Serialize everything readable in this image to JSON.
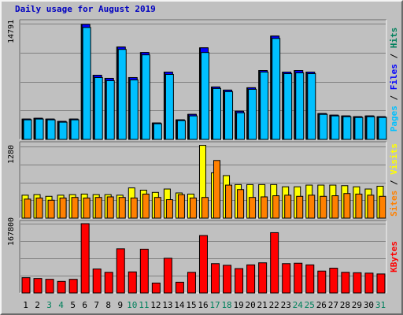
{
  "chart_data": {
    "type": "bar",
    "title": "Daily usage for August 2019",
    "categories": [
      "1",
      "2",
      "3",
      "4",
      "5",
      "6",
      "7",
      "8",
      "9",
      "10",
      "11",
      "12",
      "13",
      "14",
      "15",
      "16",
      "17",
      "18",
      "19",
      "20",
      "21",
      "22",
      "23",
      "24",
      "25",
      "26",
      "27",
      "28",
      "29",
      "30",
      "31"
    ],
    "weekend_days": [
      3,
      4,
      10,
      11,
      17,
      18,
      24,
      25,
      31
    ],
    "colors": {
      "hits": "#00805c",
      "files": "#0000ff",
      "pages": "#00c0ff",
      "visits": "#ffff00",
      "sites": "#ff8000",
      "kbytes": "#ff0000",
      "weekday_label": "#000000",
      "weekend_label": "#00805c"
    },
    "panels": [
      {
        "id": "requests",
        "max_label": "14791",
        "max_value": 14791,
        "right_label": [
          {
            "text": "Pages",
            "color": "#00c0ff"
          },
          {
            "text": " / ",
            "color": "#000000"
          },
          {
            "text": "Files",
            "color": "#0000ff"
          },
          {
            "text": " / ",
            "color": "#000000"
          },
          {
            "text": "Hits",
            "color": "#00805c"
          }
        ],
        "series": [
          {
            "name": "Hits",
            "color": "#00805c",
            "values": [
              2600,
              2700,
              2600,
              2300,
              2600,
              14700,
              8200,
              7800,
              11800,
              7900,
              11100,
              2100,
              8600,
              2500,
              3200,
              11700,
              6700,
              6300,
              3600,
              6600,
              8800,
              13200,
              8600,
              8800,
              8600,
              3300,
              3100,
              3000,
              2900,
              3000,
              2900
            ]
          },
          {
            "name": "Files",
            "color": "#0000ff",
            "values": [
              2600,
              2700,
              2600,
              2300,
              2600,
              14700,
              8200,
              7800,
              11800,
              7900,
              11100,
              2100,
              8600,
              2500,
              3200,
              11700,
              6700,
              6300,
              3600,
              6600,
              8800,
              13200,
              8600,
              8800,
              8600,
              3300,
              3100,
              3000,
              2900,
              3000,
              2900
            ]
          },
          {
            "name": "Pages",
            "color": "#00c0ff",
            "values": [
              2500,
              2600,
              2500,
              2200,
              2500,
              14300,
              7900,
              7500,
              11500,
              7600,
              10800,
              2000,
              8300,
              2400,
              3000,
              11100,
              6500,
              6100,
              3400,
              6400,
              8600,
              12900,
              8400,
              8500,
              8400,
              3200,
              3000,
              2900,
              2800,
              2900,
              2800
            ]
          }
        ]
      },
      {
        "id": "visitors",
        "max_label": "1280",
        "max_value": 1280,
        "right_label": [
          {
            "text": "Sites",
            "color": "#ff8000"
          },
          {
            "text": " / ",
            "color": "#000000"
          },
          {
            "text": "Visits",
            "color": "#ffff00"
          }
        ],
        "series": [
          {
            "name": "Visits",
            "color": "#ffff00",
            "values": [
              410,
              420,
              390,
              410,
              420,
              430,
              420,
              420,
              410,
              540,
              500,
              460,
              520,
              450,
              430,
              1300,
              810,
              760,
              600,
              600,
              600,
              600,
              560,
              560,
              590,
              590,
              590,
              580,
              560,
              520,
              570
            ]
          },
          {
            "name": "Sites",
            "color": "#ff8000",
            "values": [
              340,
              360,
              320,
              360,
              370,
              360,
              370,
              380,
              370,
              360,
              430,
              370,
              330,
              420,
              360,
              370,
              1030,
              590,
              510,
              370,
              380,
              400,
              410,
              390,
              410,
              390,
              400,
              440,
              430,
              410,
              390
            ]
          }
        ]
      },
      {
        "id": "kbytes",
        "max_label": "167800",
        "max_value": 167800,
        "right_label": [
          {
            "text": "KBytes",
            "color": "#ff0000"
          }
        ],
        "series": [
          {
            "name": "KBytes",
            "color": "#ff0000",
            "values": [
              37000,
              35000,
              33000,
              28000,
              33000,
              167800,
              58000,
              50000,
              107000,
              51000,
              106000,
              24000,
              84000,
              26000,
              50000,
              139000,
              71000,
              67000,
              59000,
              68000,
              73000,
              146000,
              71000,
              72000,
              68000,
              53000,
              60000,
              50000,
              49000,
              48000,
              46000
            ]
          }
        ]
      }
    ]
  }
}
